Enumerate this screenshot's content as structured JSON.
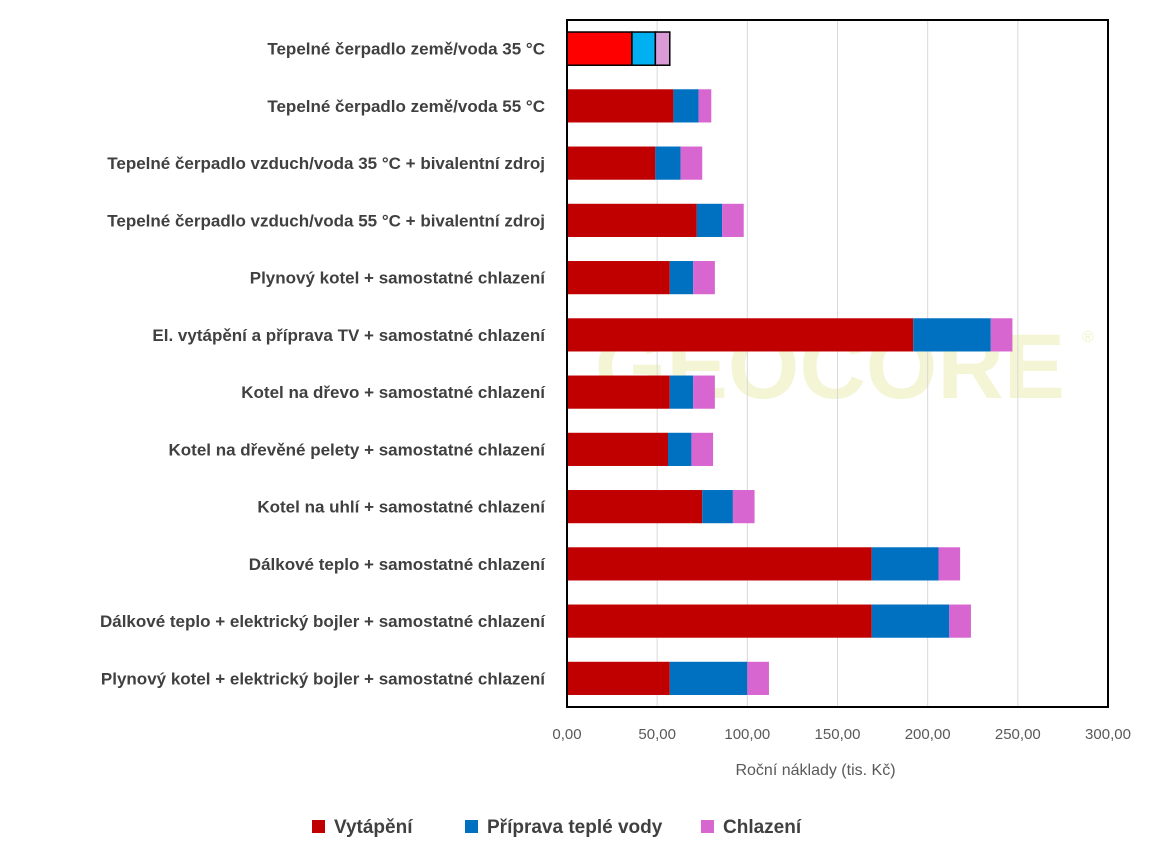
{
  "watermark": "GEOCORE",
  "chart_data": {
    "type": "bar",
    "orientation": "horizontal",
    "stacked": true,
    "categories": [
      "Tepelné čerpadlo země/voda 35 °C",
      "Tepelné čerpadlo země/voda 55 °C",
      "Tepelné čerpadlo vzduch/voda 35 °C + bivalentní zdroj",
      "Tepelné čerpadlo vzduch/voda 55 °C + bivalentní zdroj",
      "Plynový kotel + samostatné chlazení",
      "El. vytápění a příprava TV + samostatné chlazení",
      "Kotel na dřevo + samostatné chlazení",
      "Kotel na dřevěné pelety + samostatné chlazení",
      "Kotel na uhlí + samostatné chlazení",
      "Dálkové teplo + samostatné chlazení",
      "Dálkové teplo + elektrický bojler + samostatné chlazení",
      "Plynový kotel + elektrický bojler + samostatné chlazení"
    ],
    "series": [
      {
        "name": "Vytápění",
        "color": "#c00000",
        "values": [
          36,
          59,
          49,
          72,
          57,
          192,
          57,
          56,
          75,
          169,
          169,
          57
        ]
      },
      {
        "name": "Příprava teplé vody",
        "color": "#0070c0",
        "values": [
          13,
          14,
          14,
          14,
          13,
          43,
          13,
          13,
          17,
          37,
          43,
          43
        ]
      },
      {
        "name": "Chlazení",
        "color": "#d766d0",
        "values": [
          8,
          7,
          12,
          12,
          12,
          12,
          12,
          12,
          12,
          12,
          12,
          12
        ]
      }
    ],
    "highlight": {
      "category_index": 0,
      "colors": [
        "#ff0000",
        "#00b0f0",
        "#d99ad6"
      ],
      "outline": "#000000"
    },
    "xlabel": "Roční náklady (tis. Kč)",
    "ylabel": "",
    "xlim": [
      0,
      300
    ],
    "x_ticks": [
      "0,00",
      "50,00",
      "100,00",
      "150,00",
      "200,00",
      "250,00",
      "300,00"
    ],
    "grid": "vertical",
    "legend_position": "bottom"
  }
}
